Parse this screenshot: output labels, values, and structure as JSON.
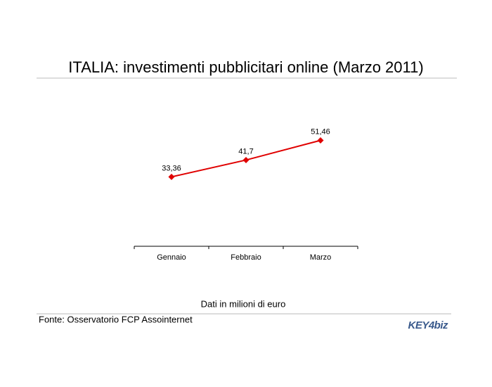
{
  "chart_data": {
    "type": "line",
    "title": "ITALIA: investimenti pubblicitari online (Marzo 2011)",
    "categories": [
      "Gennaio",
      "Febbraio",
      "Marzo"
    ],
    "series": [
      {
        "color": "#e00000",
        "values": [
          33.36,
          41.7,
          51.46
        ],
        "value_labels": [
          "33,36",
          "41,7",
          "51,46"
        ]
      }
    ],
    "ylim": [
      0,
      60
    ],
    "caption": "Dati in milioni di euro",
    "source": "Fonte: Osservatorio FCP Assointernet",
    "logo": "KEY4biz"
  }
}
